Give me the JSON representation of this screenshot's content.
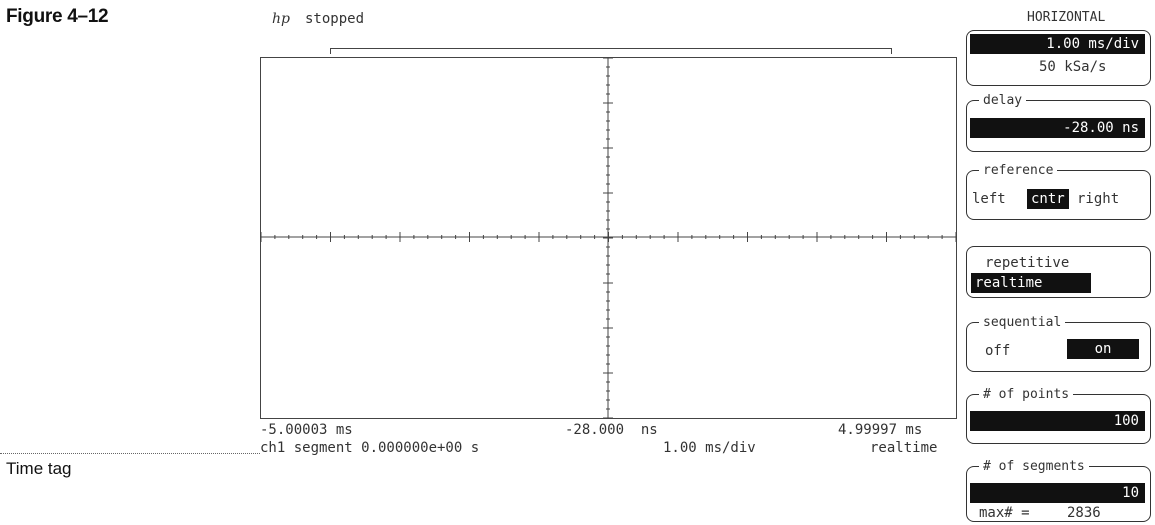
{
  "figure_label": "Figure 4–12",
  "callout": "Time tag",
  "header": {
    "logo": "hp",
    "status": "stopped"
  },
  "readout": {
    "left_time": "-5.00003 ms",
    "center_time": "-28.000  ns",
    "right_time": "4.99997 ms",
    "segment_info": "ch1 segment 0.000000e+00 s",
    "timebase": "1.00 ms/div",
    "mode": "realtime"
  },
  "panel": {
    "title": "HORIZONTAL",
    "timebase_value": "1.00 ms/div",
    "sample_rate": "50 kSa/s",
    "delay_label": "delay",
    "delay_value": "-28.00 ns",
    "reference_label": "reference",
    "reference_options": [
      "left",
      "cntr",
      "right"
    ],
    "reference_selected": "cntr",
    "acq_mode_label": "repetitive",
    "acq_mode_value": "realtime",
    "sequential_label": "sequential",
    "sequential_off": "off",
    "sequential_on": "on",
    "points_label": "# of points",
    "points_value": "100",
    "segments_label": "# of segments",
    "segments_value": "10",
    "max_label": "max# =",
    "max_value": "2836"
  }
}
